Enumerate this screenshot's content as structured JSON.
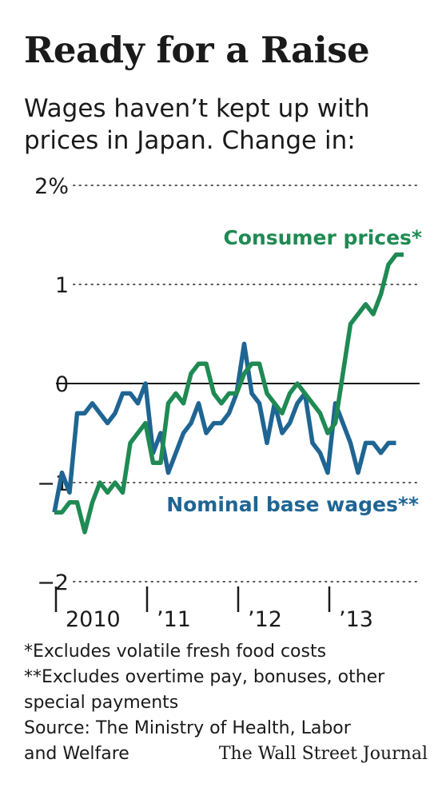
{
  "header": {
    "title": "Ready for a Raise",
    "subtitle": "Wages haven’t kept up with prices in Japan. Change in:"
  },
  "notes": {
    "note1": "*Excludes volatile fresh food costs",
    "note2": "**Excludes overtime pay, bonuses, other special payments",
    "source": "Source: The Ministry of Health, Labor and Welfare",
    "credit": "The Wall Street Journal"
  },
  "colors": {
    "consumer_prices": "#1f8a53",
    "nominal_wages": "#1f6593",
    "axis": "#1a1a1a",
    "grid": "#555555"
  },
  "chart_data": {
    "type": "line",
    "title": "Ready for a Raise",
    "subtitle": "Wages haven’t kept up with prices in Japan. Change in:",
    "ylim": [
      -2,
      2
    ],
    "yticks": [
      {
        "value": 2,
        "label": "2%"
      },
      {
        "value": 1,
        "label": "1"
      },
      {
        "value": 0,
        "label": "0"
      },
      {
        "value": -1,
        "label": "−1"
      },
      {
        "value": -2,
        "label": "−2"
      }
    ],
    "xticks": [
      {
        "x": 0,
        "label": "2010"
      },
      {
        "x": 12,
        "label": "’11"
      },
      {
        "x": 24,
        "label": "’12"
      },
      {
        "x": 36,
        "label": "’13"
      }
    ],
    "x_range": [
      0,
      47
    ],
    "grid": "dotted horizontal at 2, 1, -1, -2; solid line at 0",
    "series": [
      {
        "name": "Consumer prices*",
        "color": "#1f8a53",
        "label_position": "top-right",
        "values": [
          -1.3,
          -1.3,
          -1.2,
          -1.2,
          -1.5,
          -1.2,
          -1.0,
          -1.1,
          -1.0,
          -1.1,
          -0.6,
          -0.5,
          -0.4,
          -0.8,
          -0.8,
          -0.2,
          -0.1,
          -0.2,
          0.1,
          0.2,
          0.2,
          -0.1,
          -0.2,
          -0.1,
          -0.1,
          0.1,
          0.2,
          0.2,
          -0.1,
          -0.2,
          -0.3,
          -0.1,
          0.0,
          -0.1,
          -0.2,
          -0.3,
          -0.5,
          -0.4,
          0.1,
          0.6,
          0.7,
          0.8,
          0.7,
          0.9,
          1.2,
          1.3,
          1.3
        ]
      },
      {
        "name": "Nominal base wages**",
        "color": "#1f6593",
        "label_position": "bottom-right",
        "values": [
          -1.3,
          -0.9,
          -1.1,
          -0.3,
          -0.3,
          -0.2,
          -0.3,
          -0.4,
          -0.3,
          -0.1,
          -0.1,
          -0.2,
          0.0,
          -0.7,
          -0.5,
          -0.9,
          -0.7,
          -0.5,
          -0.4,
          -0.2,
          -0.5,
          -0.4,
          -0.4,
          -0.3,
          -0.1,
          0.4,
          -0.1,
          -0.2,
          -0.6,
          -0.2,
          -0.5,
          -0.4,
          -0.2,
          -0.1,
          -0.6,
          -0.7,
          -0.9,
          -0.2,
          -0.4,
          -0.6,
          -0.9,
          -0.6,
          -0.6,
          -0.7,
          -0.6,
          -0.6
        ]
      }
    ]
  }
}
